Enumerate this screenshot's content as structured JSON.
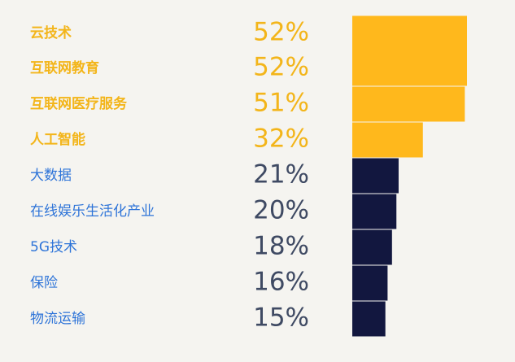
{
  "chart_data": {
    "type": "bar",
    "orientation": "horizontal",
    "title": "",
    "xlabel": "",
    "ylabel": "",
    "xlim": [
      0,
      52
    ],
    "grid": false,
    "legend": "none",
    "categories": [
      "云技术",
      "互联网教育",
      "互联网医疗服务",
      "人工智能",
      "大数据",
      "在线娱乐生活化产业",
      "5G技术",
      "保险",
      "物流运输"
    ],
    "values": [
      52,
      52,
      51,
      32,
      21,
      20,
      18,
      16,
      15
    ],
    "value_labels": [
      "52%",
      "52%",
      "51%",
      "32%",
      "21%",
      "20%",
      "18%",
      "16%",
      "15%"
    ],
    "highlighted": [
      true,
      true,
      true,
      true,
      false,
      false,
      false,
      false,
      false
    ],
    "colors": {
      "highlight_bar": "#FFB81C",
      "normal_bar": "#12173F",
      "highlight_label": "#F3B51A",
      "normal_label": "#2E74D8",
      "highlight_value": "#F3B51A",
      "normal_value": "#3F4A63",
      "background": "#F5F4F0"
    }
  }
}
